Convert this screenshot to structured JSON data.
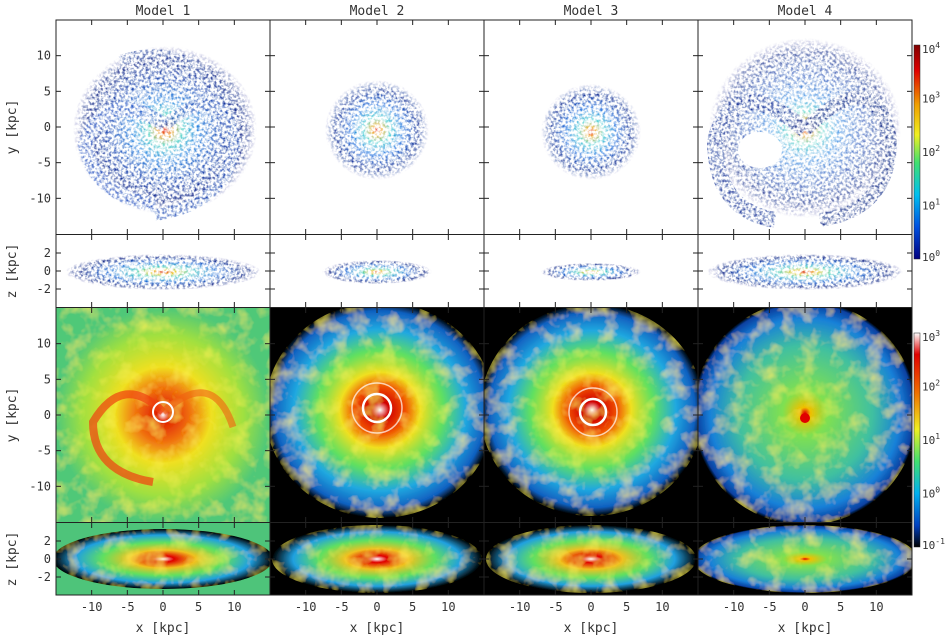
{
  "chart_data": {
    "type": "heatmap",
    "panel_titles": [
      "Model 1",
      "Model 2",
      "Model 3",
      "Model 4"
    ],
    "xlabel": "x [kpc]",
    "ylabel_faceon": "y [kpc]",
    "ylabel_edgeon": "z [kpc]",
    "xlim": [
      -15,
      15
    ],
    "ylim_faceon": [
      -15,
      15
    ],
    "zlim_edgeon": [
      -4,
      4
    ],
    "x_ticks": [
      "-10",
      "-5",
      "0",
      "5",
      "10"
    ],
    "y_ticks": [
      "10",
      "5",
      "0",
      "-5",
      "-10"
    ],
    "z_ticks": [
      "2",
      "0",
      "-2"
    ],
    "colorbar_top": {
      "ticks": [
        "10^4",
        "10^3",
        "10^2",
        "10^1",
        "10^0"
      ],
      "range": [
        1,
        10000
      ],
      "scale": "log"
    },
    "colorbar_bottom": {
      "ticks": [
        "10^3",
        "10^2",
        "10^1",
        "10^0",
        "10^-1"
      ],
      "range": [
        0.1,
        1000
      ],
      "scale": "log"
    },
    "models": [
      {
        "top_radius_kpc": 13,
        "top_spiral": true,
        "bottom_extent": "full",
        "bottom_bg": "#48c878"
      },
      {
        "top_radius_kpc": 7,
        "top_spiral": true,
        "bottom_extent": "irregular",
        "bottom_bg": "#000000"
      },
      {
        "top_radius_kpc": 7,
        "top_spiral": true,
        "bottom_extent": "irregular",
        "bottom_bg": "#000000"
      },
      {
        "top_radius_kpc": 14,
        "top_spiral": true,
        "bottom_extent": "round",
        "bottom_bg": "#000000"
      }
    ],
    "colors": {
      "low": "#00008b",
      "mid": "#00c8ff",
      "green": "#40e060",
      "yellow": "#f0f020",
      "high": "#e00000",
      "peak": "#ffffff"
    }
  }
}
